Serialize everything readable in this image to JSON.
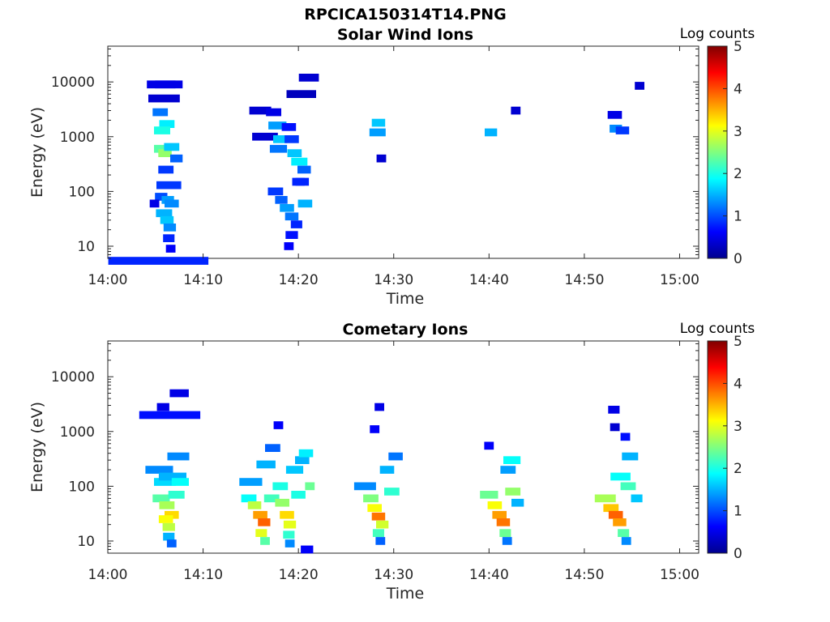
{
  "figure": {
    "title": "RPCICA150314T14.PNG"
  },
  "panels": [
    {
      "title": "Solar Wind Ions",
      "xlabel": "Time",
      "ylabel": "Energy (eV)",
      "colorbar_label": "Log counts"
    },
    {
      "title": "Cometary Ions",
      "xlabel": "Time",
      "ylabel": "Energy (eV)",
      "colorbar_label": "Log counts"
    }
  ],
  "chart_data": [
    {
      "type": "heatmap",
      "title": "Solar Wind Ions",
      "xlabel": "Time",
      "ylabel": "Energy (eV)",
      "x_ticks": [
        "14:00",
        "14:10",
        "14:20",
        "14:30",
        "14:40",
        "14:50",
        "15:00"
      ],
      "xlim_minutes": [
        0,
        62
      ],
      "y_scale": "log",
      "y_ticks": [
        "10",
        "100",
        "1000",
        "10000"
      ],
      "ylim": [
        6,
        45000
      ],
      "colorbar": {
        "label": "Log counts",
        "range": [
          0,
          5
        ],
        "ticks": [
          "0",
          "1",
          "2",
          "3",
          "4",
          "5"
        ],
        "colormap": "jet"
      },
      "cells": [
        [
          5.3,
          10.5,
          5.4,
          0.8
        ],
        [
          5.6,
          3,
          9000,
          0.5
        ],
        [
          6.4,
          2.9,
          9000,
          0.5
        ],
        [
          5.9,
          3.3,
          5000,
          0.4
        ],
        [
          5.5,
          1.6,
          2800,
          1.2
        ],
        [
          6.2,
          1.6,
          1700,
          1.8
        ],
        [
          5.7,
          1.7,
          1300,
          2.0
        ],
        [
          5.6,
          1.5,
          600,
          2.3
        ],
        [
          6.0,
          1.4,
          500,
          2.6
        ],
        [
          6.7,
          1.6,
          650,
          1.6
        ],
        [
          7.2,
          1.3,
          400,
          1.1
        ],
        [
          6.1,
          1.6,
          250,
          0.9
        ],
        [
          6.4,
          2.6,
          130,
          0.9
        ],
        [
          5.6,
          1.3,
          80,
          1.0
        ],
        [
          6.3,
          1.3,
          70,
          1.4
        ],
        [
          6.7,
          1.5,
          60,
          1.3
        ],
        [
          5.9,
          1.7,
          40,
          1.5
        ],
        [
          6.2,
          1.4,
          30,
          1.6
        ],
        [
          6.5,
          1.3,
          22,
          1.3
        ],
        [
          6.4,
          1.2,
          14,
          0.8
        ],
        [
          6.6,
          1.0,
          9,
          0.6
        ],
        [
          4.9,
          1.0,
          60,
          0.5
        ],
        [
          16.5,
          2.7,
          1000,
          0.4
        ],
        [
          16.0,
          2.3,
          3000,
          0.4
        ],
        [
          17.4,
          1.6,
          2800,
          0.5
        ],
        [
          17.8,
          1.9,
          1600,
          1.4
        ],
        [
          18.1,
          1.5,
          900,
          1.6
        ],
        [
          17.9,
          1.8,
          600,
          1.2
        ],
        [
          19.0,
          1.5,
          1500,
          0.7
        ],
        [
          19.6,
          1.5,
          500,
          1.6
        ],
        [
          20.1,
          1.7,
          350,
          1.8
        ],
        [
          20.6,
          1.4,
          250,
          1.1
        ],
        [
          19.3,
          1.5,
          900,
          0.9
        ],
        [
          20.0,
          1.3,
          150,
          0.8
        ],
        [
          21.1,
          2.1,
          12000,
          0.4
        ],
        [
          20.3,
          3.1,
          6000,
          0.3
        ],
        [
          17.6,
          1.6,
          100,
          0.9
        ],
        [
          18.2,
          1.3,
          70,
          1.1
        ],
        [
          18.8,
          1.5,
          50,
          1.4
        ],
        [
          19.3,
          1.4,
          35,
          1.2
        ],
        [
          19.8,
          1.2,
          25,
          0.8
        ],
        [
          19.3,
          1.3,
          16,
          0.7
        ],
        [
          19.0,
          1.0,
          10,
          0.6
        ],
        [
          20.7,
          1.5,
          60,
          1.5
        ],
        [
          20.4,
          1.4,
          150,
          0.8
        ],
        [
          28.4,
          1.4,
          1800,
          1.6
        ],
        [
          28.3,
          1.7,
          1200,
          1.4
        ],
        [
          28.7,
          1.0,
          400,
          0.4
        ],
        [
          40.2,
          1.3,
          1200,
          1.5
        ],
        [
          42.8,
          1.0,
          3000,
          0.4
        ],
        [
          53.2,
          1.5,
          2500,
          0.5
        ],
        [
          53.3,
          1.3,
          1400,
          1.3
        ],
        [
          54.0,
          1.4,
          1300,
          0.9
        ],
        [
          55.8,
          1.0,
          8500,
          0.4
        ]
      ]
    },
    {
      "type": "heatmap",
      "title": "Cometary Ions",
      "xlabel": "Time",
      "ylabel": "Energy (eV)",
      "x_ticks": [
        "14:00",
        "14:10",
        "14:20",
        "14:30",
        "14:40",
        "14:50",
        "15:00"
      ],
      "xlim_minutes": [
        0,
        62
      ],
      "y_scale": "log",
      "y_ticks": [
        "10",
        "100",
        "1000",
        "10000"
      ],
      "ylim": [
        6,
        45000
      ],
      "colorbar": {
        "label": "Log counts",
        "range": [
          0,
          5
        ],
        "ticks": [
          "0",
          "1",
          "2",
          "3",
          "4",
          "5"
        ],
        "colormap": "jet"
      },
      "cells": [
        [
          6.5,
          6.4,
          2000,
          0.7
        ],
        [
          5.8,
          1.3,
          2800,
          0.5
        ],
        [
          7.5,
          2.0,
          5000,
          0.5
        ],
        [
          5.4,
          2.9,
          200,
          1.3
        ],
        [
          6.0,
          2.3,
          120,
          1.7
        ],
        [
          6.8,
          2.9,
          150,
          1.5
        ],
        [
          7.4,
          2.3,
          350,
          1.3
        ],
        [
          5.6,
          1.8,
          60,
          2.3
        ],
        [
          6.2,
          1.6,
          45,
          2.7
        ],
        [
          6.7,
          1.5,
          30,
          3.3
        ],
        [
          6.1,
          1.5,
          25,
          3.1
        ],
        [
          6.4,
          1.3,
          18,
          2.8
        ],
        [
          6.4,
          1.2,
          12,
          1.5
        ],
        [
          6.7,
          1.0,
          9,
          1.1
        ],
        [
          7.2,
          1.7,
          70,
          2.1
        ],
        [
          7.6,
          1.8,
          120,
          1.9
        ],
        [
          15.0,
          2.4,
          120,
          1.4
        ],
        [
          14.8,
          1.6,
          60,
          1.9
        ],
        [
          15.4,
          1.4,
          45,
          2.8
        ],
        [
          16.0,
          1.5,
          30,
          3.6
        ],
        [
          16.4,
          1.3,
          22,
          3.9
        ],
        [
          16.1,
          1.2,
          14,
          3.0
        ],
        [
          16.5,
          1.0,
          10,
          2.3
        ],
        [
          16.6,
          2.0,
          250,
          1.5
        ],
        [
          17.3,
          1.6,
          500,
          1.1
        ],
        [
          17.2,
          1.6,
          60,
          2.2
        ],
        [
          18.1,
          1.6,
          100,
          2.0
        ],
        [
          18.3,
          1.5,
          50,
          2.6
        ],
        [
          18.8,
          1.5,
          30,
          3.3
        ],
        [
          19.1,
          1.3,
          20,
          3.0
        ],
        [
          19.0,
          1.2,
          13,
          2.1
        ],
        [
          19.1,
          1.0,
          9,
          1.3
        ],
        [
          19.6,
          1.8,
          200,
          1.6
        ],
        [
          20.0,
          1.5,
          70,
          2.0
        ],
        [
          20.4,
          1.5,
          300,
          1.5
        ],
        [
          20.8,
          1.5,
          400,
          1.8
        ],
        [
          21.2,
          1.0,
          100,
          2.4
        ],
        [
          17.9,
          1.0,
          1300,
          0.6
        ],
        [
          20.9,
          1.3,
          7,
          0.6
        ],
        [
          27.0,
          2.3,
          100,
          1.3
        ],
        [
          27.6,
          1.6,
          60,
          2.5
        ],
        [
          28.0,
          1.5,
          40,
          3.1
        ],
        [
          28.4,
          1.4,
          28,
          3.8
        ],
        [
          28.8,
          1.3,
          20,
          2.9
        ],
        [
          28.4,
          1.2,
          14,
          2.2
        ],
        [
          28.6,
          1.0,
          10,
          1.1
        ],
        [
          29.3,
          1.5,
          200,
          1.5
        ],
        [
          29.8,
          1.6,
          80,
          2.1
        ],
        [
          28.0,
          1.0,
          1100,
          0.6
        ],
        [
          28.5,
          1.0,
          2800,
          0.5
        ],
        [
          30.2,
          1.5,
          350,
          1.2
        ],
        [
          40.0,
          1.9,
          70,
          2.4
        ],
        [
          40.6,
          1.5,
          45,
          3.1
        ],
        [
          41.1,
          1.5,
          30,
          3.6
        ],
        [
          41.5,
          1.4,
          22,
          3.8
        ],
        [
          41.7,
          1.2,
          14,
          2.4
        ],
        [
          41.9,
          1.0,
          10,
          1.2
        ],
        [
          42.0,
          1.6,
          200,
          1.4
        ],
        [
          42.4,
          1.8,
          300,
          1.9
        ],
        [
          42.5,
          1.6,
          80,
          2.6
        ],
        [
          43.0,
          1.3,
          50,
          1.5
        ],
        [
          40.0,
          1.0,
          550,
          0.6
        ],
        [
          52.2,
          2.2,
          60,
          2.7
        ],
        [
          52.8,
          1.6,
          40,
          3.4
        ],
        [
          53.3,
          1.5,
          30,
          3.9
        ],
        [
          53.7,
          1.4,
          22,
          3.6
        ],
        [
          54.1,
          1.2,
          14,
          2.3
        ],
        [
          54.4,
          1.0,
          10,
          1.3
        ],
        [
          53.8,
          2.1,
          150,
          1.9
        ],
        [
          54.6,
          1.6,
          100,
          2.2
        ],
        [
          54.8,
          1.7,
          350,
          1.5
        ],
        [
          55.5,
          1.2,
          60,
          1.6
        ],
        [
          53.1,
          1.2,
          2500,
          0.5
        ],
        [
          54.3,
          1.0,
          800,
          0.7
        ],
        [
          53.2,
          1.0,
          1200,
          0.4
        ]
      ]
    }
  ]
}
